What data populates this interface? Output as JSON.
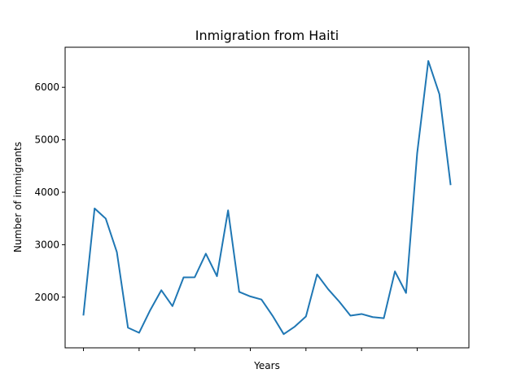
{
  "chart_data": {
    "type": "line",
    "title": "Inmigration from Haiti",
    "xlabel": "Years",
    "ylabel": "Number of immigrants",
    "x": [
      0,
      1,
      2,
      3,
      4,
      5,
      6,
      7,
      8,
      9,
      10,
      11,
      12,
      13,
      14,
      15,
      16,
      17,
      18,
      19,
      20,
      21,
      22,
      23,
      24,
      25,
      26,
      27,
      28,
      29,
      30,
      31,
      32,
      33
    ],
    "series": [
      {
        "values": [
          1666,
          3692,
          3498,
          2860,
          1418,
          1321,
          1753,
          2132,
          1829,
          2377,
          2379,
          2829,
          2399,
          3655,
          2100,
          2014,
          1955,
          1645,
          1295,
          1439,
          1631,
          2433,
          2151,
          1913,
          1648,
          1679,
          1620,
          1598,
          2491,
          2080,
          4744,
          6503,
          5868,
          4152
        ],
        "color": "#1f77b4"
      }
    ],
    "xlim": [
      -1.65,
      34.65
    ],
    "ylim": [
      1034,
      6764
    ],
    "yticks": [
      2000,
      3000,
      4000,
      5000,
      6000
    ],
    "ytick_labels": [
      "2000",
      "3000",
      "4000",
      "5000",
      "6000"
    ],
    "xticks": [
      0,
      5,
      10,
      15,
      20,
      25,
      30
    ],
    "xtick_labels": [
      "",
      "",
      "",
      "",
      "",
      "",
      ""
    ],
    "grid": false,
    "legend": false
  }
}
